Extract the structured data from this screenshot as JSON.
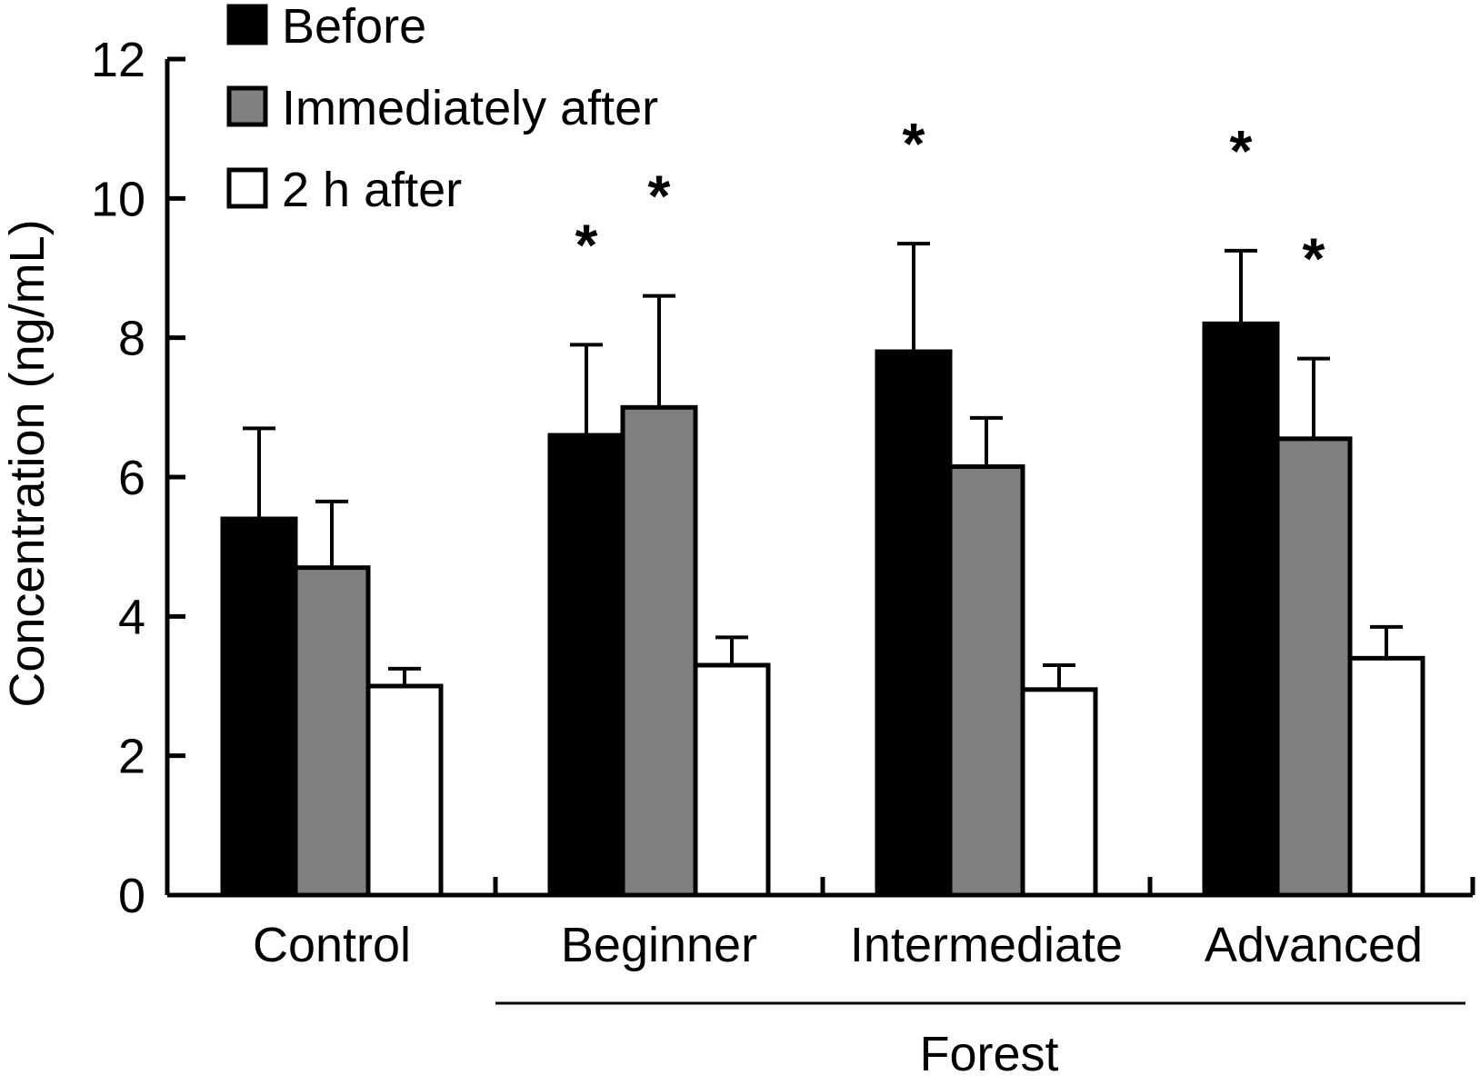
{
  "chart_data": {
    "type": "bar",
    "title": "",
    "xlabel": "",
    "ylabel": "Concentration (ng/mL)",
    "ylim": [
      0,
      12
    ],
    "yticks": [
      0,
      2,
      4,
      6,
      8,
      10,
      12
    ],
    "grid": false,
    "legend_position": "top-left",
    "categories": [
      "Control",
      "Beginner",
      "Intermediate",
      "Advanced"
    ],
    "group_label": {
      "text": "Forest",
      "spans": [
        "Beginner",
        "Intermediate",
        "Advanced"
      ]
    },
    "series": [
      {
        "name": "Before",
        "color": "#000000",
        "values": [
          5.4,
          6.6,
          7.8,
          8.2
        ],
        "errors": [
          1.3,
          1.3,
          1.55,
          1.05
        ],
        "significant": [
          false,
          true,
          true,
          true
        ]
      },
      {
        "name": "Immediately after",
        "color": "#808080",
        "values": [
          4.7,
          7.0,
          6.15,
          6.55
        ],
        "errors": [
          0.95,
          1.6,
          0.7,
          1.15
        ],
        "significant": [
          false,
          true,
          false,
          true
        ]
      },
      {
        "name": "2 h after",
        "color": "#ffffff",
        "values": [
          3.0,
          3.3,
          2.95,
          3.4
        ],
        "errors": [
          0.25,
          0.4,
          0.35,
          0.45
        ],
        "significant": [
          false,
          false,
          false,
          false
        ]
      }
    ],
    "significance_marker": "*"
  }
}
